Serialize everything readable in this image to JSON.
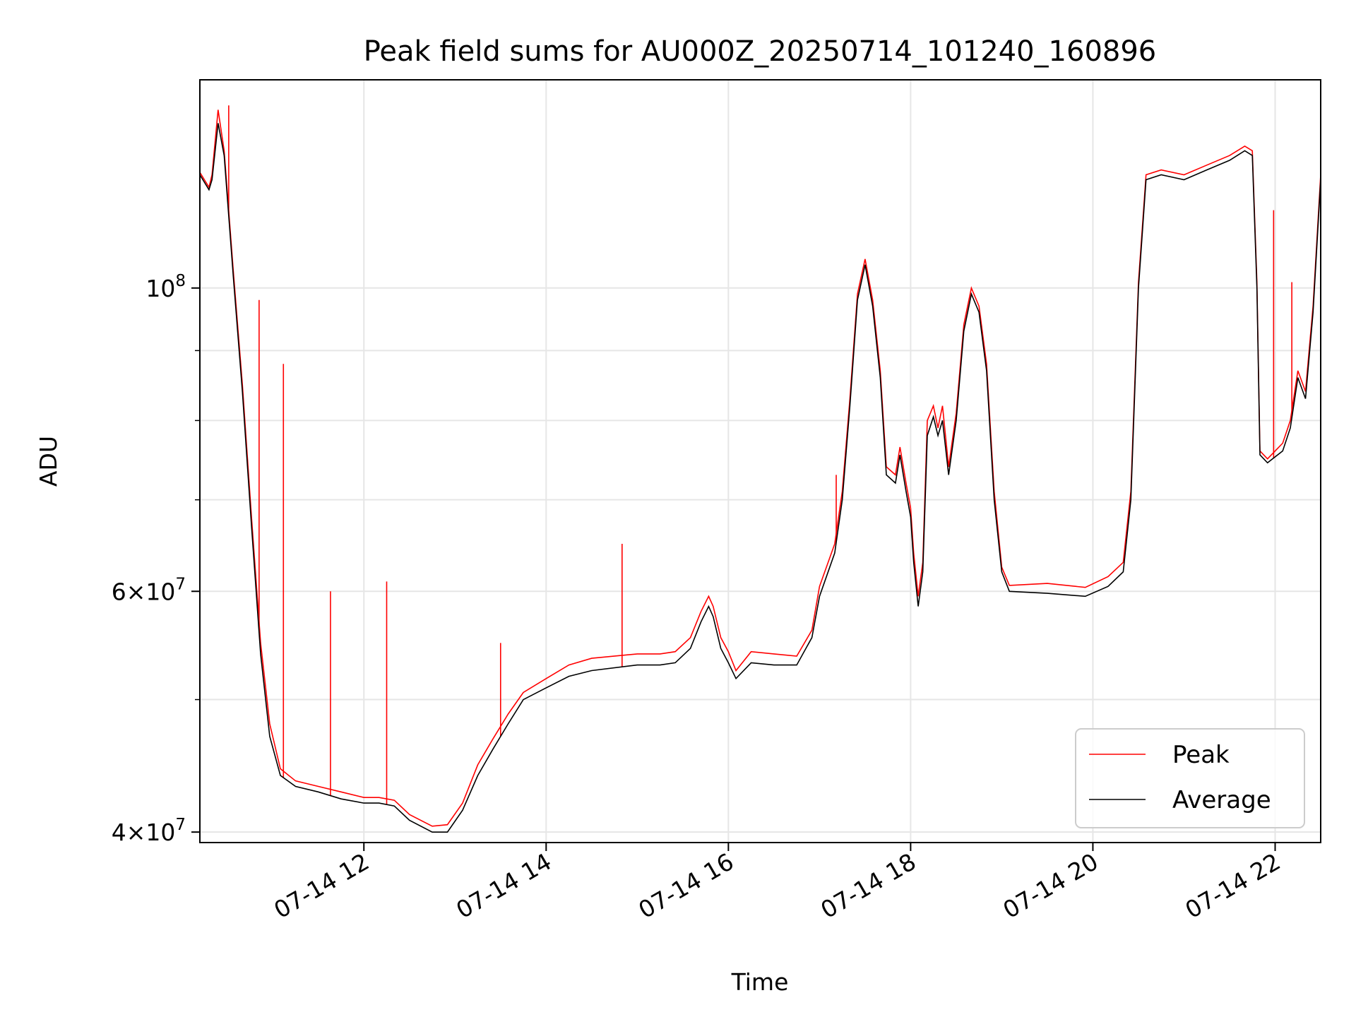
{
  "chart_data": {
    "type": "line",
    "title": "Peak field sums for AU000Z_20250714_101240_160896",
    "xlabel": "Time",
    "ylabel": "ADU",
    "yscale": "log",
    "grid": true,
    "legend_position": "lower-right",
    "x_ticks": [
      "07-14 12",
      "07-14 14",
      "07-14 16",
      "07-14 18",
      "07-14 20",
      "07-14 22"
    ],
    "x_range": [
      "2025-07-14 10:12",
      "2025-07-14 22:30"
    ],
    "ylim": [
      39300000,
      142000000
    ],
    "y_ticks": [
      {
        "value": 40000000,
        "base": "4",
        "exp": "7",
        "mult": true
      },
      {
        "value": 60000000,
        "base": "6",
        "exp": "7",
        "mult": true
      },
      {
        "value": 100000000,
        "base": "10",
        "exp": "8",
        "mult": false
      }
    ],
    "y_minor_ticks": [
      50000000,
      70000000,
      80000000,
      90000000
    ],
    "series": [
      {
        "name": "Average",
        "color": "#000000",
        "points": [
          [
            "2025-07-14 10:12",
            121000000
          ],
          [
            "2025-07-14 10:18",
            118000000
          ],
          [
            "2025-07-14 10:20",
            120000000
          ],
          [
            "2025-07-14 10:24",
            132000000
          ],
          [
            "2025-07-14 10:28",
            125000000
          ],
          [
            "2025-07-14 10:34",
            102000000
          ],
          [
            "2025-07-14 10:40",
            84000000
          ],
          [
            "2025-07-14 10:46",
            67000000
          ],
          [
            "2025-07-14 10:52",
            54000000
          ],
          [
            "2025-07-14 10:58",
            47000000
          ],
          [
            "2025-07-14 11:05",
            44000000
          ],
          [
            "2025-07-14 11:15",
            43200000
          ],
          [
            "2025-07-14 11:30",
            42800000
          ],
          [
            "2025-07-14 11:45",
            42300000
          ],
          [
            "2025-07-14 12:00",
            42000000
          ],
          [
            "2025-07-14 12:10",
            42000000
          ],
          [
            "2025-07-14 12:20",
            41800000
          ],
          [
            "2025-07-14 12:30",
            40800000
          ],
          [
            "2025-07-14 12:45",
            40000000
          ],
          [
            "2025-07-14 12:55",
            40000000
          ],
          [
            "2025-07-14 13:05",
            41500000
          ],
          [
            "2025-07-14 13:15",
            44000000
          ],
          [
            "2025-07-14 13:25",
            46000000
          ],
          [
            "2025-07-14 13:35",
            48000000
          ],
          [
            "2025-07-14 13:45",
            50000000
          ],
          [
            "2025-07-14 14:00",
            51000000
          ],
          [
            "2025-07-14 14:15",
            52000000
          ],
          [
            "2025-07-14 14:30",
            52500000
          ],
          [
            "2025-07-14 15:00",
            53000000
          ],
          [
            "2025-07-14 15:15",
            53000000
          ],
          [
            "2025-07-14 15:25",
            53200000
          ],
          [
            "2025-07-14 15:35",
            54500000
          ],
          [
            "2025-07-14 15:42",
            57000000
          ],
          [
            "2025-07-14 15:47",
            58500000
          ],
          [
            "2025-07-14 15:50",
            57500000
          ],
          [
            "2025-07-14 15:55",
            54500000
          ],
          [
            "2025-07-14 16:00",
            53200000
          ],
          [
            "2025-07-14 16:05",
            51800000
          ],
          [
            "2025-07-14 16:15",
            53200000
          ],
          [
            "2025-07-14 16:30",
            53000000
          ],
          [
            "2025-07-14 16:45",
            53000000
          ],
          [
            "2025-07-14 16:55",
            55500000
          ],
          [
            "2025-07-14 17:00",
            59500000
          ],
          [
            "2025-07-14 17:10",
            64000000
          ],
          [
            "2025-07-14 17:15",
            70000000
          ],
          [
            "2025-07-14 17:20",
            82000000
          ],
          [
            "2025-07-14 17:25",
            98000000
          ],
          [
            "2025-07-14 17:30",
            104000000
          ],
          [
            "2025-07-14 17:35",
            97000000
          ],
          [
            "2025-07-14 17:40",
            86000000
          ],
          [
            "2025-07-14 17:44",
            73000000
          ],
          [
            "2025-07-14 17:50",
            72000000
          ],
          [
            "2025-07-14 17:53",
            75500000
          ],
          [
            "2025-07-14 17:57",
            71000000
          ],
          [
            "2025-07-14 18:00",
            68000000
          ],
          [
            "2025-07-14 18:02",
            63000000
          ],
          [
            "2025-07-14 18:05",
            58500000
          ],
          [
            "2025-07-14 18:08",
            62000000
          ],
          [
            "2025-07-14 18:11",
            78000000
          ],
          [
            "2025-07-14 18:15",
            80500000
          ],
          [
            "2025-07-14 18:18",
            78000000
          ],
          [
            "2025-07-14 18:21",
            80000000
          ],
          [
            "2025-07-14 18:25",
            73000000
          ],
          [
            "2025-07-14 18:30",
            80000000
          ],
          [
            "2025-07-14 18:35",
            93000000
          ],
          [
            "2025-07-14 18:40",
            99000000
          ],
          [
            "2025-07-14 18:45",
            96000000
          ],
          [
            "2025-07-14 18:50",
            87000000
          ],
          [
            "2025-07-14 18:55",
            70000000
          ],
          [
            "2025-07-14 19:00",
            62000000
          ],
          [
            "2025-07-14 19:05",
            60000000
          ],
          [
            "2025-07-14 19:30",
            59800000
          ],
          [
            "2025-07-14 19:55",
            59500000
          ],
          [
            "2025-07-14 20:10",
            60500000
          ],
          [
            "2025-07-14 20:20",
            62000000
          ],
          [
            "2025-07-14 20:25",
            70000000
          ],
          [
            "2025-07-14 20:30",
            100000000
          ],
          [
            "2025-07-14 20:35",
            120000000
          ],
          [
            "2025-07-14 20:45",
            121000000
          ],
          [
            "2025-07-14 21:00",
            120000000
          ],
          [
            "2025-07-14 21:15",
            122000000
          ],
          [
            "2025-07-14 21:30",
            124000000
          ],
          [
            "2025-07-14 21:40",
            126000000
          ],
          [
            "2025-07-14 21:45",
            125000000
          ],
          [
            "2025-07-14 21:48",
            100000000
          ],
          [
            "2025-07-14 21:50",
            75500000
          ],
          [
            "2025-07-14 21:55",
            74500000
          ],
          [
            "2025-07-14 22:05",
            76000000
          ],
          [
            "2025-07-14 22:10",
            79000000
          ],
          [
            "2025-07-14 22:15",
            86000000
          ],
          [
            "2025-07-14 22:20",
            83000000
          ],
          [
            "2025-07-14 22:25",
            96000000
          ],
          [
            "2025-07-14 22:30",
            120000000
          ]
        ]
      },
      {
        "name": "Peak",
        "color": "#ff0000",
        "points": [
          [
            "2025-07-14 10:12",
            121500000
          ],
          [
            "2025-07-14 10:18",
            118500000
          ],
          [
            "2025-07-14 10:20",
            121000000
          ],
          [
            "2025-07-14 10:24",
            135000000
          ],
          [
            "2025-07-14 10:28",
            126000000
          ],
          [
            "2025-07-14 10:34",
            103000000
          ],
          [
            "2025-07-14 10:40",
            85000000
          ],
          [
            "2025-07-14 10:46",
            68000000
          ],
          [
            "2025-07-14 10:52",
            55000000
          ],
          [
            "2025-07-14 10:58",
            48000000
          ],
          [
            "2025-07-14 11:05",
            44500000
          ],
          [
            "2025-07-14 11:15",
            43600000
          ],
          [
            "2025-07-14 11:30",
            43200000
          ],
          [
            "2025-07-14 11:45",
            42800000
          ],
          [
            "2025-07-14 12:00",
            42400000
          ],
          [
            "2025-07-14 12:10",
            42400000
          ],
          [
            "2025-07-14 12:20",
            42200000
          ],
          [
            "2025-07-14 12:30",
            41200000
          ],
          [
            "2025-07-14 12:45",
            40400000
          ],
          [
            "2025-07-14 12:55",
            40500000
          ],
          [
            "2025-07-14 13:05",
            42000000
          ],
          [
            "2025-07-14 13:15",
            44800000
          ],
          [
            "2025-07-14 13:25",
            46800000
          ],
          [
            "2025-07-14 13:35",
            48800000
          ],
          [
            "2025-07-14 13:45",
            50600000
          ],
          [
            "2025-07-14 14:00",
            51800000
          ],
          [
            "2025-07-14 14:15",
            53000000
          ],
          [
            "2025-07-14 14:30",
            53600000
          ],
          [
            "2025-07-14 15:00",
            54000000
          ],
          [
            "2025-07-14 15:15",
            54000000
          ],
          [
            "2025-07-14 15:25",
            54200000
          ],
          [
            "2025-07-14 15:35",
            55500000
          ],
          [
            "2025-07-14 15:42",
            58000000
          ],
          [
            "2025-07-14 15:47",
            59500000
          ],
          [
            "2025-07-14 15:50",
            58500000
          ],
          [
            "2025-07-14 15:55",
            55500000
          ],
          [
            "2025-07-14 16:00",
            54200000
          ],
          [
            "2025-07-14 16:05",
            52500000
          ],
          [
            "2025-07-14 16:15",
            54200000
          ],
          [
            "2025-07-14 16:30",
            54000000
          ],
          [
            "2025-07-14 16:45",
            53800000
          ],
          [
            "2025-07-14 16:55",
            56200000
          ],
          [
            "2025-07-14 17:00",
            60500000
          ],
          [
            "2025-07-14 17:10",
            65000000
          ],
          [
            "2025-07-14 17:15",
            71000000
          ],
          [
            "2025-07-14 17:20",
            83000000
          ],
          [
            "2025-07-14 17:25",
            99000000
          ],
          [
            "2025-07-14 17:30",
            105000000
          ],
          [
            "2025-07-14 17:35",
            98000000
          ],
          [
            "2025-07-14 17:40",
            87000000
          ],
          [
            "2025-07-14 17:44",
            74000000
          ],
          [
            "2025-07-14 17:50",
            73000000
          ],
          [
            "2025-07-14 17:53",
            76500000
          ],
          [
            "2025-07-14 17:57",
            72000000
          ],
          [
            "2025-07-14 18:00",
            69000000
          ],
          [
            "2025-07-14 18:02",
            64000000
          ],
          [
            "2025-07-14 18:05",
            59500000
          ],
          [
            "2025-07-14 18:08",
            63000000
          ],
          [
            "2025-07-14 18:11",
            80000000
          ],
          [
            "2025-07-14 18:15",
            82000000
          ],
          [
            "2025-07-14 18:18",
            79000000
          ],
          [
            "2025-07-14 18:21",
            82000000
          ],
          [
            "2025-07-14 18:25",
            74000000
          ],
          [
            "2025-07-14 18:30",
            81000000
          ],
          [
            "2025-07-14 18:35",
            94000000
          ],
          [
            "2025-07-14 18:40",
            100000000
          ],
          [
            "2025-07-14 18:45",
            97000000
          ],
          [
            "2025-07-14 18:50",
            88000000
          ],
          [
            "2025-07-14 18:55",
            71000000
          ],
          [
            "2025-07-14 19:00",
            62500000
          ],
          [
            "2025-07-14 19:05",
            60600000
          ],
          [
            "2025-07-14 19:30",
            60800000
          ],
          [
            "2025-07-14 19:55",
            60400000
          ],
          [
            "2025-07-14 20:10",
            61500000
          ],
          [
            "2025-07-14 20:20",
            63000000
          ],
          [
            "2025-07-14 20:25",
            71000000
          ],
          [
            "2025-07-14 20:30",
            101000000
          ],
          [
            "2025-07-14 20:35",
            121000000
          ],
          [
            "2025-07-14 20:45",
            122000000
          ],
          [
            "2025-07-14 21:00",
            121000000
          ],
          [
            "2025-07-14 21:15",
            123000000
          ],
          [
            "2025-07-14 21:30",
            125000000
          ],
          [
            "2025-07-14 21:40",
            127000000
          ],
          [
            "2025-07-14 21:45",
            126000000
          ],
          [
            "2025-07-14 21:48",
            101000000
          ],
          [
            "2025-07-14 21:50",
            76000000
          ],
          [
            "2025-07-14 21:55",
            75000000
          ],
          [
            "2025-07-14 22:05",
            77000000
          ],
          [
            "2025-07-14 22:10",
            80000000
          ],
          [
            "2025-07-14 22:15",
            87000000
          ],
          [
            "2025-07-14 22:20",
            84000000
          ],
          [
            "2025-07-14 22:25",
            97000000
          ],
          [
            "2025-07-14 22:30",
            121000000
          ]
        ]
      }
    ],
    "spikes": [
      [
        "2025-07-14 10:31",
        136000000
      ],
      [
        "2025-07-14 10:51",
        98000000
      ],
      [
        "2025-07-14 11:07",
        88000000
      ],
      [
        "2025-07-14 11:38",
        60000000
      ],
      [
        "2025-07-14 12:15",
        61000000
      ],
      [
        "2025-07-14 13:30",
        55000000
      ],
      [
        "2025-07-14 14:50",
        65000000
      ],
      [
        "2025-07-14 17:11",
        73000000
      ],
      [
        "2025-07-14 21:59",
        114000000
      ],
      [
        "2025-07-14 22:11",
        101000000
      ]
    ]
  }
}
